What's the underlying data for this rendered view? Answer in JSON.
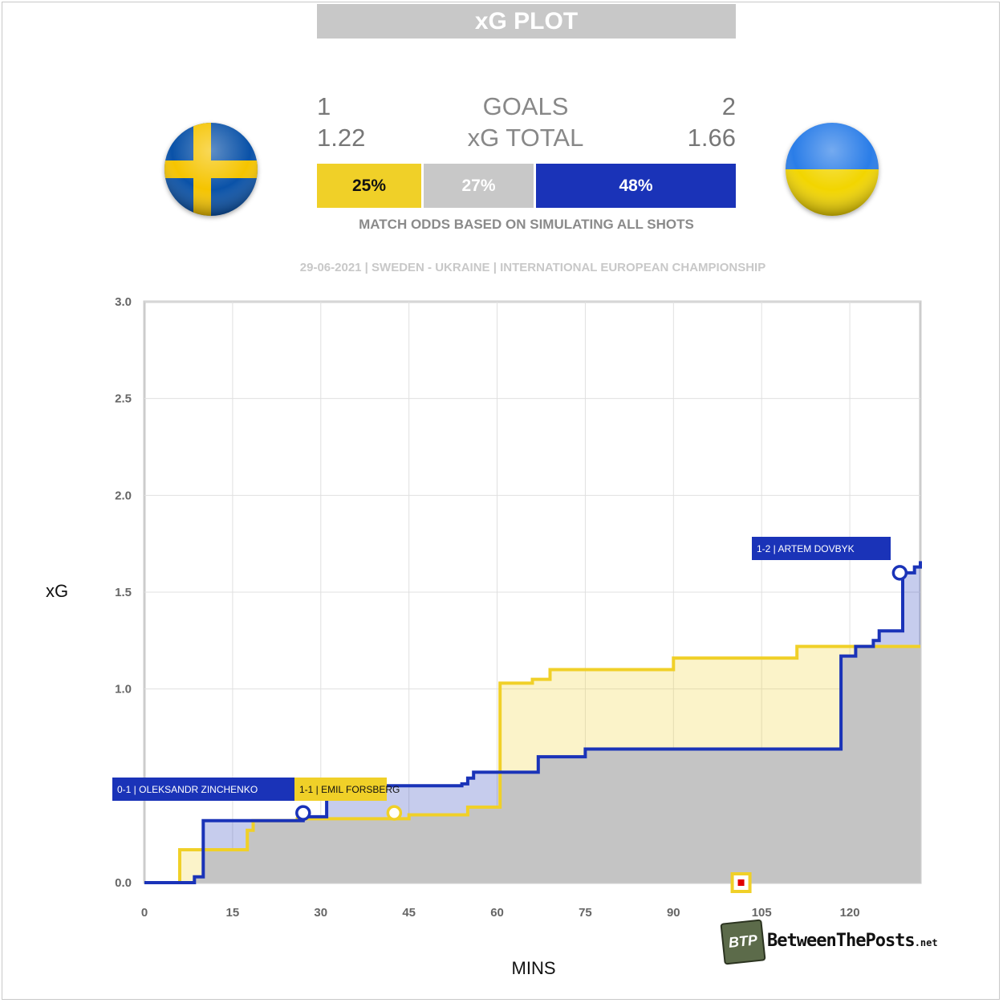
{
  "header": {
    "title": "xG PLOT"
  },
  "teams": {
    "home": {
      "name": "Sweden",
      "goals": "1",
      "xg": "1.22",
      "win_pct": "25%",
      "color": "#f0d028"
    },
    "away": {
      "name": "Ukraine",
      "goals": "2",
      "xg": "1.66",
      "win_pct": "48%",
      "color": "#1a33b8"
    }
  },
  "center": {
    "goals_label": "GOALS",
    "xg_label": "xG TOTAL",
    "draw_pct": "27%",
    "draw_color": "#c8c8c8"
  },
  "odds_note": "MATCH ODDS BASED ON SIMULATING ALL SHOTS",
  "match_info": "29-06-2021 | SWEDEN - UKRAINE | INTERNATIONAL EUROPEAN CHAMPIONSHIP",
  "brand": {
    "badge": "BTP",
    "name": "BetweenThePosts",
    "suffix": ".net"
  },
  "chart_data": {
    "type": "line",
    "step": true,
    "xlabel": "MINS",
    "ylabel": "xG",
    "xlim": [
      0,
      132
    ],
    "ylim": [
      0,
      3.0
    ],
    "x_ticks": [
      "0",
      "15",
      "30",
      "45",
      "60",
      "75",
      "90",
      "105",
      "120"
    ],
    "y_ticks": [
      "0.0",
      "1.0",
      "1.5",
      "2.0",
      "2.5",
      "3.0"
    ],
    "grid": true,
    "series": [
      {
        "name": "Sweden",
        "color": "#f0d028",
        "points": [
          [
            0,
            0
          ],
          [
            6,
            0.17
          ],
          [
            17.5,
            0.27
          ],
          [
            18.5,
            0.32
          ],
          [
            26,
            0.33
          ],
          [
            28,
            0.33
          ],
          [
            40,
            0.33
          ],
          [
            42,
            0.33
          ],
          [
            45,
            0.35
          ],
          [
            54,
            0.35
          ],
          [
            55,
            0.39
          ],
          [
            57,
            0.39
          ],
          [
            60.5,
            1.03
          ],
          [
            66,
            1.05
          ],
          [
            69,
            1.1
          ],
          [
            90,
            1.16
          ],
          [
            111,
            1.22
          ],
          [
            132,
            1.22
          ]
        ]
      },
      {
        "name": "Ukraine",
        "color": "#1a33b8",
        "points": [
          [
            0,
            0
          ],
          [
            8.5,
            0.03
          ],
          [
            10,
            0.32
          ],
          [
            27,
            0.34
          ],
          [
            31,
            0.5
          ],
          [
            54,
            0.51
          ],
          [
            55,
            0.54
          ],
          [
            56,
            0.57
          ],
          [
            67,
            0.65
          ],
          [
            75,
            0.69
          ],
          [
            118,
            0.69
          ],
          [
            118.5,
            1.17
          ],
          [
            121,
            1.22
          ],
          [
            124,
            1.25
          ],
          [
            125,
            1.3
          ],
          [
            128,
            1.3
          ],
          [
            129,
            1.6
          ],
          [
            131,
            1.63
          ],
          [
            132,
            1.66
          ]
        ]
      }
    ],
    "goals": [
      {
        "label": "0-1 | OLEKSANDR ZINCHENKO",
        "team": "away",
        "minute": 27,
        "xg": 0.36
      },
      {
        "label": "1-1 | EMIL FORSBERG",
        "team": "home",
        "minute": 42.5,
        "xg": 0.36
      },
      {
        "label": "1-2 | ARTEM DOVBYK",
        "team": "away",
        "minute": 128.5,
        "xg": 1.6
      }
    ],
    "cards": [
      {
        "type": "red",
        "minute": 101.5
      }
    ]
  }
}
